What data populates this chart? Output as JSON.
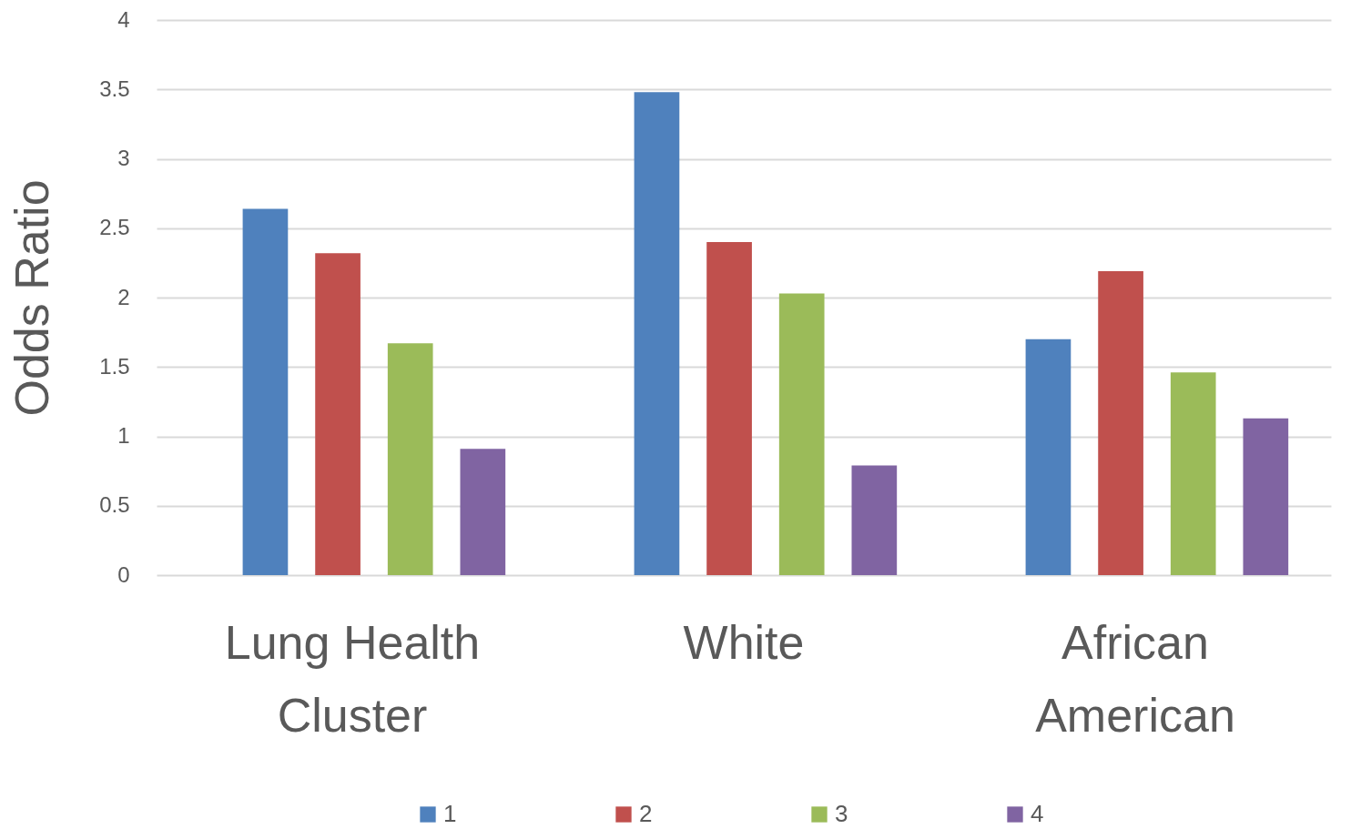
{
  "chart_data": {
    "type": "bar",
    "ylabel": "Odds Ratio",
    "categories": [
      "Lung Health Cluster",
      "White",
      "African American"
    ],
    "series": [
      {
        "name": "1",
        "color": "#4f81bd",
        "values": [
          2.64,
          3.48,
          1.7
        ]
      },
      {
        "name": "2",
        "color": "#c0504d",
        "values": [
          2.32,
          2.4,
          2.19
        ]
      },
      {
        "name": "3",
        "color": "#9bbb59",
        "values": [
          1.67,
          2.03,
          1.46
        ]
      },
      {
        "name": "4",
        "color": "#8064a2",
        "values": [
          0.91,
          0.79,
          1.13
        ]
      }
    ],
    "ylim": [
      0,
      4
    ],
    "yticks": [
      0,
      0.5,
      1,
      1.5,
      2,
      2.5,
      3,
      3.5,
      4
    ],
    "grid": "y",
    "legend": "bottom"
  }
}
